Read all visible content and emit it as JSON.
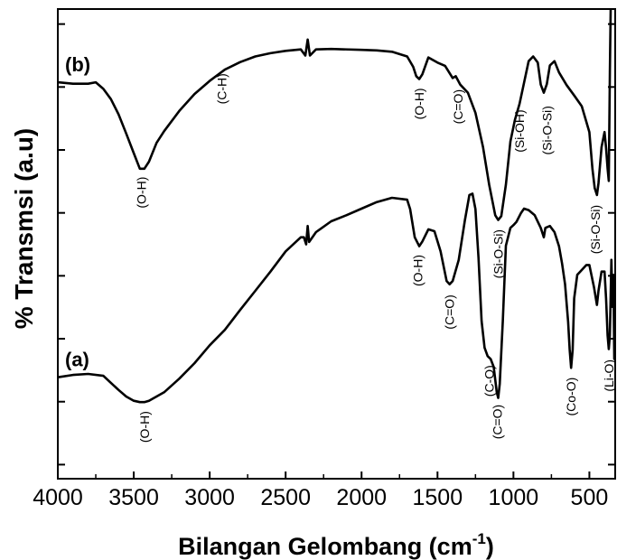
{
  "chart_data": {
    "type": "line",
    "xlabel": "Bilangan Gelombang (cm",
    "xlabel_sup": "-1",
    "xlabel_close": ")",
    "ylabel": "% Transmsi (a.u)",
    "xlim": [
      4000,
      330
    ],
    "x_reversed": true,
    "xticks": [
      4000,
      3500,
      3000,
      2500,
      2000,
      1500,
      1000,
      500
    ],
    "xtick_labels": [
      "4000",
      "3500",
      "3000",
      "2500",
      "2000",
      "1500",
      "1000",
      "500"
    ],
    "ylim": [
      0,
      100
    ],
    "grid": false,
    "series": [
      {
        "name": "(b)",
        "points": [
          [
            4000,
            84.4
          ],
          [
            3900,
            84.1
          ],
          [
            3800,
            84.1
          ],
          [
            3750,
            84.4
          ],
          [
            3700,
            83.0
          ],
          [
            3650,
            80.8
          ],
          [
            3600,
            77.6
          ],
          [
            3550,
            73.5
          ],
          [
            3500,
            69.3
          ],
          [
            3460,
            66.0
          ],
          [
            3430,
            66.0
          ],
          [
            3400,
            67.5
          ],
          [
            3350,
            71.5
          ],
          [
            3300,
            74.0
          ],
          [
            3200,
            78.3
          ],
          [
            3100,
            81.9
          ],
          [
            3000,
            84.7
          ],
          [
            2900,
            87.1
          ],
          [
            2800,
            88.7
          ],
          [
            2700,
            89.9
          ],
          [
            2600,
            90.6
          ],
          [
            2500,
            91.1
          ],
          [
            2400,
            91.4
          ],
          [
            2370,
            90.1
          ],
          [
            2355,
            93.5
          ],
          [
            2340,
            90.1
          ],
          [
            2300,
            91.4
          ],
          [
            2200,
            91.5
          ],
          [
            2000,
            91.3
          ],
          [
            1900,
            91.2
          ],
          [
            1800,
            90.9
          ],
          [
            1700,
            89.9
          ],
          [
            1660,
            87.7
          ],
          [
            1640,
            85.7
          ],
          [
            1620,
            85.1
          ],
          [
            1600,
            86.1
          ],
          [
            1560,
            89.7
          ],
          [
            1500,
            88.6
          ],
          [
            1450,
            87.9
          ],
          [
            1400,
            85.3
          ],
          [
            1380,
            85.7
          ],
          [
            1350,
            83.9
          ],
          [
            1300,
            82.2
          ],
          [
            1250,
            77.9
          ],
          [
            1200,
            70.6
          ],
          [
            1160,
            62.6
          ],
          [
            1120,
            56.1
          ],
          [
            1100,
            55.1
          ],
          [
            1080,
            55.9
          ],
          [
            1050,
            62.6
          ],
          [
            1020,
            71.8
          ],
          [
            990,
            76.4
          ],
          [
            960,
            79.8
          ],
          [
            930,
            84.3
          ],
          [
            900,
            88.9
          ],
          [
            870,
            89.9
          ],
          [
            840,
            88.6
          ],
          [
            820,
            83.9
          ],
          [
            800,
            82.2
          ],
          [
            780,
            84.0
          ],
          [
            760,
            88.0
          ],
          [
            730,
            88.9
          ],
          [
            700,
            86.5
          ],
          [
            650,
            83.8
          ],
          [
            600,
            81.6
          ],
          [
            550,
            79.3
          ],
          [
            500,
            73.8
          ],
          [
            480,
            66.0
          ],
          [
            465,
            61.9
          ],
          [
            450,
            60.4
          ],
          [
            440,
            62.9
          ],
          [
            420,
            70.6
          ],
          [
            400,
            73.8
          ],
          [
            390,
            70.4
          ],
          [
            380,
            66.0
          ],
          [
            372,
            63.4
          ],
          [
            365,
            86.5
          ],
          [
            360,
            100.0
          ]
        ]
      },
      {
        "name": "(a)",
        "points": [
          [
            4000,
            21.6
          ],
          [
            3900,
            22.1
          ],
          [
            3800,
            22.3
          ],
          [
            3700,
            21.9
          ],
          [
            3650,
            20.4
          ],
          [
            3600,
            18.9
          ],
          [
            3550,
            17.5
          ],
          [
            3500,
            16.6
          ],
          [
            3460,
            16.3
          ],
          [
            3430,
            16.3
          ],
          [
            3400,
            16.6
          ],
          [
            3300,
            18.4
          ],
          [
            3200,
            21.3
          ],
          [
            3100,
            24.6
          ],
          [
            3000,
            28.4
          ],
          [
            2900,
            31.7
          ],
          [
            2800,
            35.9
          ],
          [
            2700,
            40.0
          ],
          [
            2600,
            44.1
          ],
          [
            2500,
            48.4
          ],
          [
            2400,
            51.4
          ],
          [
            2380,
            51.4
          ],
          [
            2365,
            49.9
          ],
          [
            2355,
            53.8
          ],
          [
            2345,
            50.4
          ],
          [
            2300,
            52.5
          ],
          [
            2200,
            54.8
          ],
          [
            2100,
            56.1
          ],
          [
            2000,
            57.5
          ],
          [
            1900,
            58.9
          ],
          [
            1800,
            59.8
          ],
          [
            1700,
            59.4
          ],
          [
            1680,
            57.4
          ],
          [
            1650,
            51.4
          ],
          [
            1620,
            49.5
          ],
          [
            1600,
            50.5
          ],
          [
            1560,
            53.1
          ],
          [
            1520,
            52.7
          ],
          [
            1480,
            48.4
          ],
          [
            1440,
            42.1
          ],
          [
            1420,
            41.4
          ],
          [
            1400,
            42.1
          ],
          [
            1360,
            46.6
          ],
          [
            1320,
            55.0
          ],
          [
            1290,
            60.4
          ],
          [
            1270,
            60.7
          ],
          [
            1250,
            57.4
          ],
          [
            1230,
            47.0
          ],
          [
            1210,
            33.6
          ],
          [
            1190,
            27.9
          ],
          [
            1170,
            26.1
          ],
          [
            1150,
            25.5
          ],
          [
            1130,
            23.8
          ],
          [
            1110,
            18.4
          ],
          [
            1100,
            17.2
          ],
          [
            1090,
            20.2
          ],
          [
            1070,
            33.6
          ],
          [
            1050,
            49.6
          ],
          [
            1020,
            53.4
          ],
          [
            1000,
            54.0
          ],
          [
            980,
            54.7
          ],
          [
            950,
            56.6
          ],
          [
            930,
            57.5
          ],
          [
            900,
            57.2
          ],
          [
            860,
            56.1
          ],
          [
            820,
            53.4
          ],
          [
            800,
            51.4
          ],
          [
            790,
            53.4
          ],
          [
            760,
            53.8
          ],
          [
            730,
            52.5
          ],
          [
            700,
            49.5
          ],
          [
            680,
            45.8
          ],
          [
            660,
            41.4
          ],
          [
            640,
            33.4
          ],
          [
            630,
            27.5
          ],
          [
            620,
            23.6
          ],
          [
            610,
            27.4
          ],
          [
            600,
            38.4
          ],
          [
            580,
            43.4
          ],
          [
            560,
            44.1
          ],
          [
            520,
            45.5
          ],
          [
            500,
            45.5
          ],
          [
            470,
            40.8
          ],
          [
            450,
            37.0
          ],
          [
            440,
            40.0
          ],
          [
            420,
            44.1
          ],
          [
            400,
            44.1
          ],
          [
            390,
            38.4
          ],
          [
            380,
            30.5
          ],
          [
            372,
            27.6
          ],
          [
            365,
            30.5
          ],
          [
            355,
            46.6
          ],
          [
            348,
            36.6
          ],
          [
            342,
            43.4
          ],
          [
            336,
            25.5
          ],
          [
            332,
            37.0
          ]
        ]
      }
    ],
    "annotations": [
      {
        "text": "(O-H)",
        "x": 3450,
        "y": 64.3,
        "series": "(b)"
      },
      {
        "text": "(C-H)",
        "x": 2920,
        "y": 86.3,
        "series": "(b)"
      },
      {
        "text": "(O-H)",
        "x": 1620,
        "y": 83.2,
        "series": "(b)"
      },
      {
        "text": "(C=O)",
        "x": 1365,
        "y": 82.9,
        "series": "(b)"
      },
      {
        "text": "(Si-OH)",
        "x": 960,
        "y": 78.6,
        "series": "(b)"
      },
      {
        "text": "(Si-O-Si)",
        "x": 780,
        "y": 79.4,
        "series": "(b)"
      },
      {
        "text": "(Si-O-Si)",
        "x": 1100,
        "y": 53.1,
        "series": "(b)"
      },
      {
        "text": "(Si-O-Si)",
        "x": 460,
        "y": 58.3,
        "series": "(b)"
      },
      {
        "text": "(O-H)",
        "x": 3430,
        "y": 14.4,
        "series": "(a)"
      },
      {
        "text": "(O-H)",
        "x": 1630,
        "y": 47.7,
        "series": "(a)"
      },
      {
        "text": "(C=O)",
        "x": 1420,
        "y": 39.2,
        "series": "(a)"
      },
      {
        "text": "(C-O)",
        "x": 1160,
        "y": 24.2,
        "series": "(a)"
      },
      {
        "text": "(C=O)",
        "x": 1105,
        "y": 15.8,
        "series": "(a)"
      },
      {
        "text": "(Co-O)",
        "x": 620,
        "y": 21.6,
        "series": "(a)"
      },
      {
        "text": "(Li-O)",
        "x": 372,
        "y": 25.4,
        "series": "(a)"
      }
    ],
    "series_labels": [
      {
        "text": "(b)",
        "series": "(b)"
      },
      {
        "text": "(a)",
        "series": "(a)"
      }
    ]
  },
  "colors": {
    "line": "#000000",
    "axis": "#000000",
    "background": "#ffffff"
  }
}
